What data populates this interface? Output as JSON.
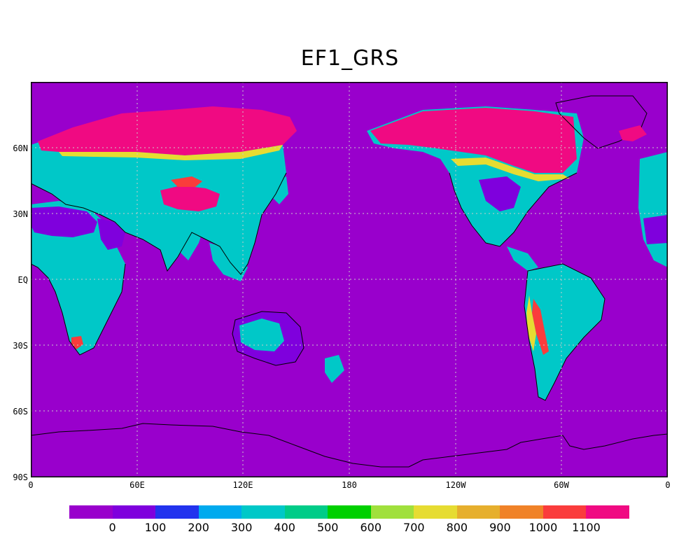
{
  "title": "EF1_GRS",
  "lat_labels": [
    "60N",
    "30N",
    "EQ",
    "30S",
    "60S",
    "90S"
  ],
  "lon_labels": [
    "0",
    "60E",
    "120E",
    "180",
    "120W",
    "60W",
    "0"
  ],
  "colorbar": {
    "colors": [
      "#9900cc",
      "#7f00dd",
      "#2233ee",
      "#00aaee",
      "#00c8c8",
      "#00cc88",
      "#00d000",
      "#a0e03c",
      "#e6dc32",
      "#e6af2d",
      "#f08228",
      "#fa3c3c",
      "#f00a82"
    ],
    "labels": [
      "0",
      "100",
      "200",
      "300",
      "400",
      "500",
      "600",
      "700",
      "800",
      "900",
      "1000",
      "1100"
    ]
  },
  "palette": {
    "ocean": "#9900cc",
    "coast": "#000000",
    "grid": "#cccccc"
  }
}
